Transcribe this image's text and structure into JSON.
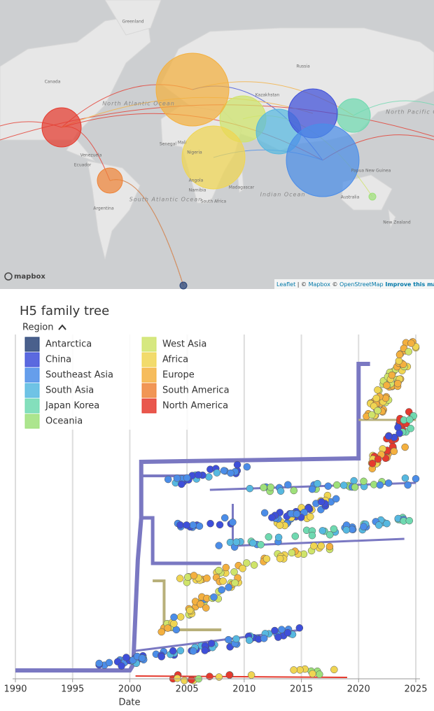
{
  "map": {
    "labels": [
      "Greenland",
      "Canada",
      "Russia",
      "Kazakhstan",
      "North Atlantic Ocean",
      "Senegal",
      "Mali",
      "Nigeria",
      "Angola",
      "Namibia",
      "South Africa",
      "Madagascar",
      "Indian Ocean",
      "South Atlantic Ocean",
      "Venezuela",
      "Ecuador",
      "Argentina",
      "Papua New Guinea",
      "Australia",
      "New Zealand",
      "North Pacific Ocean"
    ],
    "logo": "mapbox",
    "attribution": [
      "Leaflet",
      " | © ",
      "Mapbox",
      " © ",
      "OpenStreetMap",
      " Improve this map"
    ]
  },
  "tree": {
    "title": "H5 family tree",
    "legend_title": "Region",
    "legend": [
      {
        "name": "Antarctica",
        "color": "#2a4478"
      },
      {
        "name": "China",
        "color": "#3e4fd9"
      },
      {
        "name": "Southeast Asia",
        "color": "#4b8de8"
      },
      {
        "name": "South Asia",
        "color": "#56b8e0"
      },
      {
        "name": "Japan Korea",
        "color": "#6fd9b0"
      },
      {
        "name": "Oceania",
        "color": "#9ee07a"
      },
      {
        "name": "West Asia",
        "color": "#cfe46a"
      },
      {
        "name": "Africa",
        "color": "#f0d552"
      },
      {
        "name": "Europe",
        "color": "#f4b03f"
      },
      {
        "name": "South America",
        "color": "#ee8438"
      },
      {
        "name": "North America",
        "color": "#e53a2e"
      }
    ],
    "x_label": "Date",
    "xlim": [
      1989.5,
      2025.9
    ],
    "xticks": [
      1990,
      1995,
      2000,
      2005,
      2010,
      2015,
      2020,
      2025
    ]
  }
}
